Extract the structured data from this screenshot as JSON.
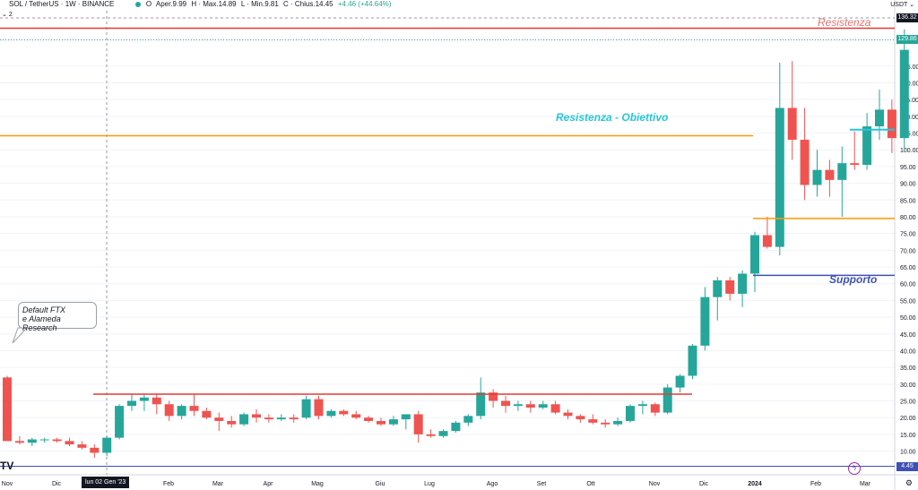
{
  "header": {
    "symbol": "SOL / TetherUS · 1W · BINANCE",
    "open_label": "O",
    "open_text": "Aper.9.99",
    "high_text": "H · Max.14.89",
    "low_text": "L · Min.9.81",
    "close_text": "C · Chius.14.45",
    "change_text": "+4.46 (+44.64%)",
    "sub_indicator": "2",
    "currency": "USDT"
  },
  "annotations": {
    "callout_line1": "Default FTX",
    "callout_line2": "e Alameda Research",
    "resistenza": "Resistenza",
    "resistenza_obiettivo": "Resistenza - Obiettivo",
    "supporto": "Supporto"
  },
  "crosshair_date": "lun 02 Gen '23",
  "price_tags": {
    "resistance": "136.32",
    "current": "129.86",
    "bottom": "4.45"
  },
  "colors": {
    "up": "#26a69a",
    "down": "#ef5350",
    "resistance": "#e53935",
    "target": "#ff9800",
    "support": "#3f51b5",
    "teal_line": "#26c6da"
  },
  "chart_data": {
    "type": "candlestick",
    "timeframe": "1W",
    "ylim": [
      4,
      141
    ],
    "y_ticks": [
      10,
      15,
      20,
      25,
      30,
      35,
      40,
      45,
      50,
      55,
      60,
      65,
      70,
      75,
      80,
      85,
      90,
      95,
      100,
      105,
      110,
      115,
      120,
      125
    ],
    "x_ticks": [
      "Nov",
      "Dic",
      "Feb",
      "Mar",
      "Apr",
      "Mag",
      "Giu",
      "Lug",
      "Ago",
      "Set",
      "Ott",
      "Nov",
      "Dic",
      "2024",
      "Feb",
      "Mar"
    ],
    "candles": [
      [
        32,
        32.5,
        13,
        13
      ],
      [
        13,
        14.5,
        12,
        12.5
      ],
      [
        12.5,
        14,
        11.5,
        13.5
      ],
      [
        13.5,
        14,
        12.5,
        13.5
      ],
      [
        13.5,
        14,
        12.5,
        13
      ],
      [
        13,
        14,
        11.5,
        12
      ],
      [
        12,
        13,
        10.5,
        11
      ],
      [
        11,
        12,
        8,
        9.5
      ],
      [
        9.5,
        14.5,
        8.5,
        14
      ],
      [
        14,
        24,
        13.5,
        23.5
      ],
      [
        23.5,
        27,
        22,
        25
      ],
      [
        25,
        27,
        22,
        26
      ],
      [
        26,
        27,
        21,
        24
      ],
      [
        24,
        25,
        19,
        20.5
      ],
      [
        20.5,
        24,
        19.5,
        23.5
      ],
      [
        23.5,
        27,
        20.5,
        22
      ],
      [
        22,
        23,
        19.5,
        20
      ],
      [
        20,
        21.5,
        16,
        19
      ],
      [
        19,
        20.5,
        17,
        18
      ],
      [
        18,
        21.5,
        17.5,
        21
      ],
      [
        21,
        22.5,
        18.5,
        20
      ],
      [
        20,
        21,
        18.5,
        19.5
      ],
      [
        19.5,
        21,
        19,
        20
      ],
      [
        20,
        21,
        18.5,
        19.5
      ],
      [
        20,
        26.5,
        19.5,
        25.5
      ],
      [
        25.5,
        26.5,
        19.5,
        20.5
      ],
      [
        20.5,
        22.5,
        20,
        22
      ],
      [
        22,
        22.5,
        20.5,
        21
      ],
      [
        21,
        22,
        19.5,
        20
      ],
      [
        20,
        20.5,
        18.5,
        19
      ],
      [
        19,
        20,
        17.5,
        18
      ],
      [
        18,
        20.5,
        17.5,
        19.5
      ],
      [
        19.5,
        21,
        16.5,
        21
      ],
      [
        21,
        22,
        12.5,
        15
      ],
      [
        15,
        16.5,
        14,
        14.5
      ],
      [
        14.5,
        16.5,
        14,
        16
      ],
      [
        16,
        19,
        15.5,
        18.5
      ],
      [
        18.5,
        21,
        17.5,
        20.5
      ],
      [
        20.5,
        32,
        19.5,
        27.5
      ],
      [
        27.5,
        28.5,
        23,
        25
      ],
      [
        25,
        26.5,
        21.5,
        23.5
      ],
      [
        23.5,
        25,
        22,
        24
      ],
      [
        24,
        25,
        21.5,
        23
      ],
      [
        23,
        25,
        22.5,
        24
      ],
      [
        24,
        25,
        21,
        21.5
      ],
      [
        21.5,
        22.5,
        19.5,
        20.5
      ],
      [
        20.5,
        21,
        18.5,
        19.5
      ],
      [
        19.5,
        21,
        18,
        18.5
      ],
      [
        18.5,
        19.5,
        17,
        18
      ],
      [
        18,
        20,
        17.5,
        19
      ],
      [
        19,
        24,
        18.5,
        23.5
      ],
      [
        23.5,
        25,
        21,
        24
      ],
      [
        24,
        24.5,
        20.5,
        21.5
      ],
      [
        21.5,
        30,
        21,
        29
      ],
      [
        29,
        33,
        27.5,
        32.5
      ],
      [
        32.5,
        42,
        31.5,
        41.5
      ],
      [
        41.5,
        59,
        40,
        56
      ],
      [
        56,
        62,
        49,
        61
      ],
      [
        61,
        62,
        55,
        57
      ],
      [
        57,
        64,
        53,
        63
      ],
      [
        63,
        75.5,
        57.5,
        74.5
      ],
      [
        74.5,
        80,
        70.5,
        71
      ],
      [
        71,
        126,
        68.5,
        112.5
      ],
      [
        112.5,
        126.5,
        97,
        103
      ],
      [
        103,
        112.5,
        85,
        89.5
      ],
      [
        89.5,
        100,
        86,
        94
      ],
      [
        94,
        97,
        86,
        91
      ],
      [
        91,
        101,
        80,
        96
      ],
      [
        96,
        105.5,
        94,
        95.5
      ],
      [
        95.5,
        111,
        94,
        107
      ],
      [
        107,
        118,
        103,
        112
      ],
      [
        112,
        115,
        99,
        103.5
      ],
      [
        103.5,
        136,
        100,
        129.86
      ]
    ],
    "levels": [
      {
        "name": "Resistenza",
        "value": 136.32,
        "color": "#e53935"
      },
      {
        "name": "Resistenza - Obiettivo",
        "value": 104.2,
        "color": "#ff9800"
      },
      {
        "name": "range top",
        "value": 27,
        "color": "#e53935"
      },
      {
        "name": "Supporto",
        "value": 62.5,
        "color": "#3f51b5"
      },
      {
        "name": "lower target",
        "value": 79.5,
        "color": "#ff9800"
      },
      {
        "name": "current",
        "value": 106,
        "color": "#26c6da"
      }
    ]
  }
}
